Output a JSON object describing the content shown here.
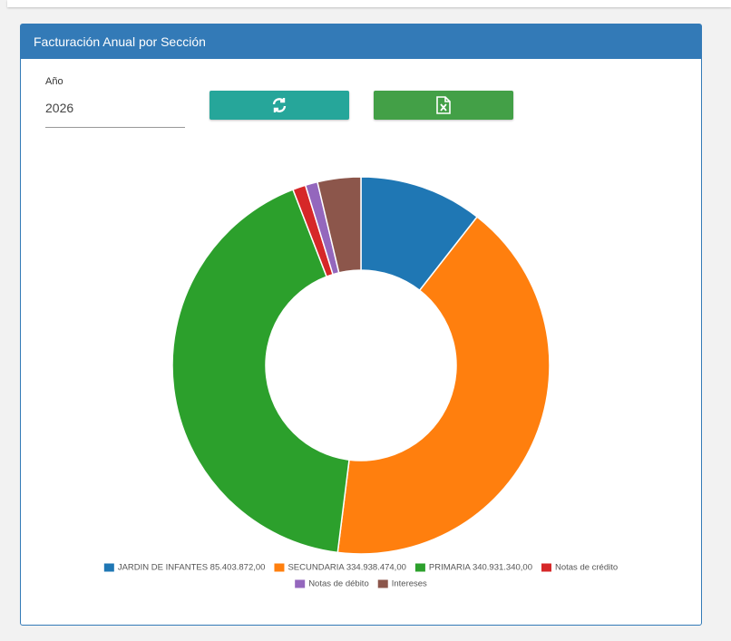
{
  "panel": {
    "title": "Facturación Anual por Sección"
  },
  "form": {
    "year_label": "Año",
    "year_value": "2026"
  },
  "chart_data": {
    "type": "donut",
    "categories": [
      "JARDIN DE INFANTES 85.403.872,00",
      "SECUNDARIA 334.938.474,00",
      "PRIMARIA 340.931.340,00",
      "Notas de crédito",
      "Notas de débito",
      "Intereses"
    ],
    "values": [
      85403872,
      334938474,
      340931340,
      9000000,
      8500000,
      30000000
    ],
    "colors": [
      "#1f77b4",
      "#ff7f0e",
      "#2ca02c",
      "#d62728",
      "#9467bd",
      "#8c564b"
    ]
  }
}
